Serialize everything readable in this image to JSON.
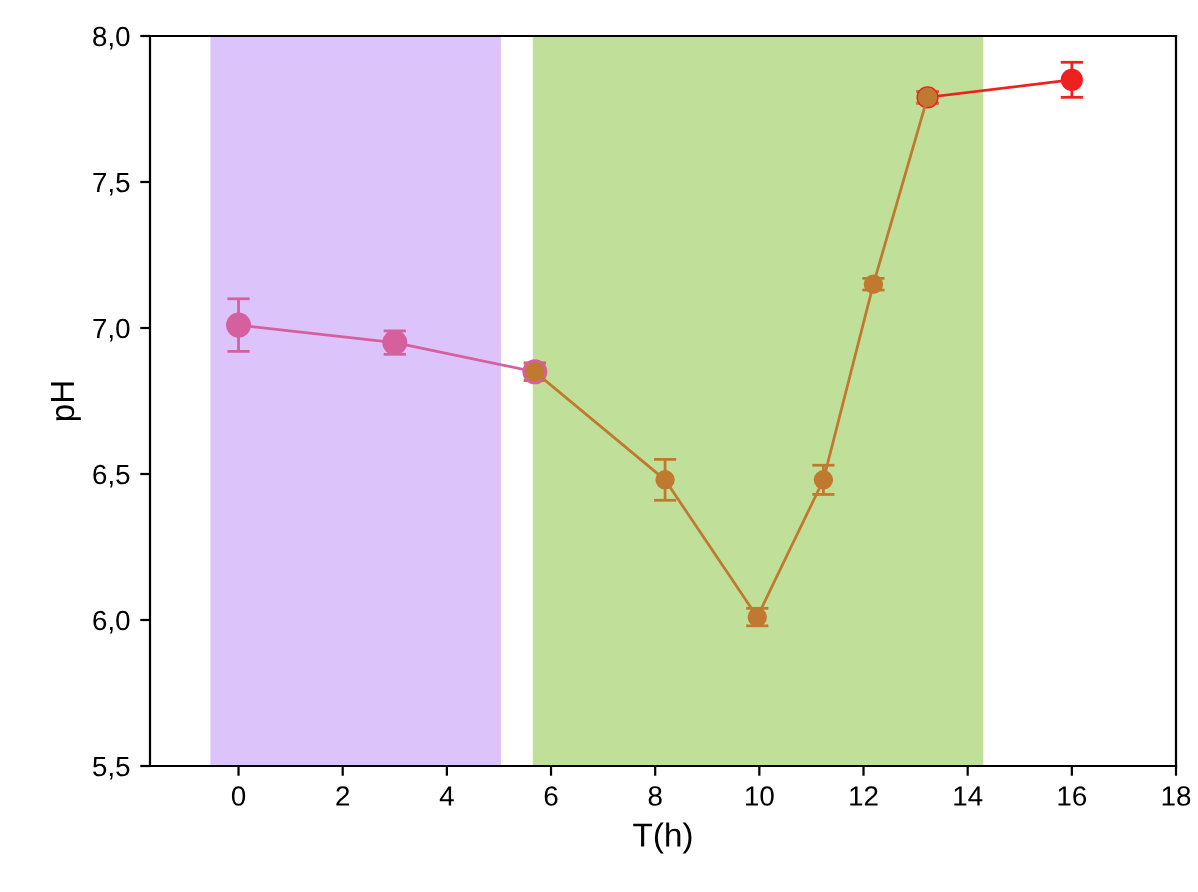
{
  "chart_data": {
    "type": "line",
    "xlabel": "T(h)",
    "ylabel": "pH",
    "xlim": [
      -1.7,
      18
    ],
    "xticks": [
      0,
      2,
      4,
      6,
      8,
      10,
      12,
      14,
      16,
      18
    ],
    "ylim": [
      5.5,
      8.0
    ],
    "yticks": [
      {
        "value": 5.5,
        "label": "5,5"
      },
      {
        "value": 6.0,
        "label": "6,0"
      },
      {
        "value": 6.5,
        "label": "6,5"
      },
      {
        "value": 7.0,
        "label": "7,0"
      },
      {
        "value": 7.5,
        "label": "7,5"
      },
      {
        "value": 8.0,
        "label": "8,0"
      }
    ],
    "bands": [
      {
        "axis": "x",
        "from": -0.54,
        "to": 5.04,
        "label": null,
        "color": "#dcc4fb"
      },
      {
        "axis": "x",
        "from": 5.65,
        "to": 14.3,
        "label": null,
        "color": "#c0e09a"
      }
    ],
    "marker": "circle",
    "line_style": "solid",
    "grid": false,
    "legend": false,
    "series": [
      {
        "color": "#d65f9e",
        "x": [
          0,
          3,
          5.69
        ],
        "values": [
          7.01,
          6.95,
          6.85
        ],
        "errors": [
          0.09,
          0.04,
          0.03
        ]
      },
      {
        "color": "#ee2020",
        "x": [
          13.23,
          16
        ],
        "values": [
          7.79,
          7.85
        ],
        "errors": [
          0.02,
          0.06
        ]
      },
      {
        "color": "#c07a30",
        "x": [
          5.69,
          8.19,
          9.96,
          11.23,
          12.19,
          13.23
        ],
        "values": [
          6.85,
          6.48,
          6.01,
          6.48,
          7.15,
          7.79
        ],
        "errors": [
          0.03,
          0.07,
          0.03,
          0.05,
          0.02,
          0.02
        ]
      }
    ]
  }
}
